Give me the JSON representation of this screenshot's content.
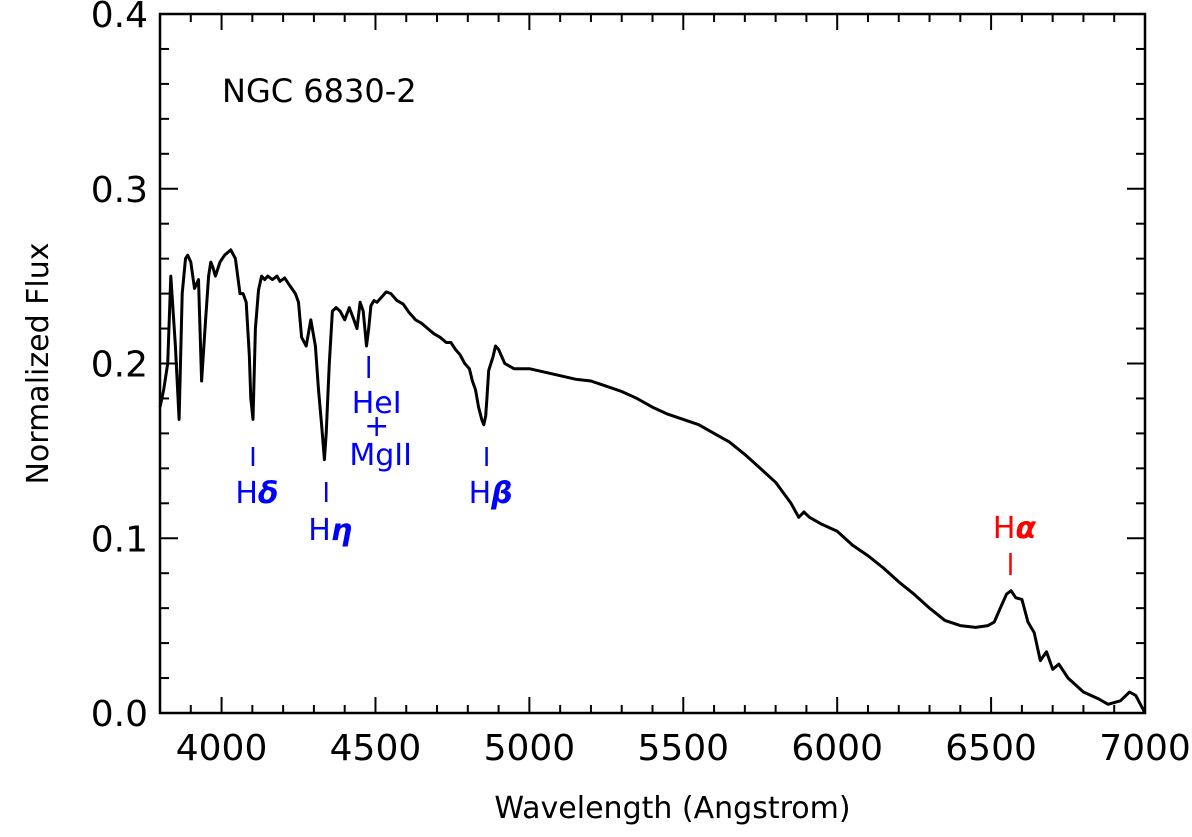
{
  "chart_data": {
    "type": "line",
    "title": "",
    "annotation": "NGC 6830-2",
    "xlabel": "Wavelength (Angstrom)",
    "ylabel": "Normalized Flux",
    "xlim": [
      3800,
      7000
    ],
    "ylim": [
      0.0,
      0.4
    ],
    "xticks": [
      4000,
      4500,
      5000,
      5500,
      6000,
      6500,
      7000
    ],
    "xtick_labels": [
      "4000",
      "4500",
      "5000",
      "5500",
      "6000",
      "6500",
      "7000"
    ],
    "yticks": [
      0.0,
      0.1,
      0.2,
      0.3,
      0.4
    ],
    "ytick_labels": [
      "0.0",
      "0.1",
      "0.2",
      "0.3",
      "0.4"
    ],
    "grid": false,
    "series": [
      {
        "color": "#000000",
        "x": [
          3800,
          3812,
          3825,
          3835,
          3850,
          3862,
          3872,
          3883,
          3890,
          3900,
          3912,
          3925,
          3935,
          3948,
          3958,
          3965,
          3972,
          3980,
          3995,
          4010,
          4030,
          4045,
          4060,
          4070,
          4080,
          4090,
          4095,
          4102,
          4110,
          4120,
          4130,
          4140,
          4150,
          4165,
          4180,
          4190,
          4205,
          4220,
          4240,
          4250,
          4260,
          4275,
          4290,
          4305,
          4315,
          4325,
          4334,
          4340,
          4350,
          4360,
          4372,
          4385,
          4400,
          4415,
          4430,
          4440,
          4450,
          4460,
          4471,
          4478,
          4485,
          4495,
          4505,
          4520,
          4535,
          4550,
          4570,
          4590,
          4610,
          4630,
          4650,
          4670,
          4690,
          4710,
          4730,
          4745,
          4760,
          4775,
          4790,
          4805,
          4815,
          4825,
          4835,
          4845,
          4852,
          4858,
          4862,
          4868,
          4875,
          4882,
          4890,
          4900,
          4920,
          4950,
          5000,
          5050,
          5100,
          5150,
          5200,
          5250,
          5300,
          5350,
          5400,
          5450,
          5500,
          5550,
          5600,
          5650,
          5700,
          5750,
          5800,
          5850,
          5875,
          5892,
          5910,
          5950,
          6000,
          6050,
          6100,
          6150,
          6200,
          6250,
          6300,
          6350,
          6400,
          6450,
          6490,
          6510,
          6530,
          6550,
          6565,
          6580,
          6600,
          6620,
          6640,
          6660,
          6680,
          6700,
          6720,
          6750,
          6800,
          6850,
          6880,
          6920,
          6950,
          6970,
          6985,
          7000
        ],
        "values": [
          0.175,
          0.185,
          0.2,
          0.25,
          0.21,
          0.168,
          0.24,
          0.26,
          0.262,
          0.258,
          0.243,
          0.248,
          0.19,
          0.225,
          0.25,
          0.258,
          0.255,
          0.25,
          0.258,
          0.262,
          0.265,
          0.26,
          0.24,
          0.24,
          0.235,
          0.205,
          0.18,
          0.168,
          0.22,
          0.242,
          0.25,
          0.248,
          0.25,
          0.248,
          0.25,
          0.247,
          0.249,
          0.245,
          0.24,
          0.235,
          0.215,
          0.21,
          0.225,
          0.21,
          0.185,
          0.165,
          0.145,
          0.16,
          0.2,
          0.23,
          0.232,
          0.23,
          0.225,
          0.232,
          0.225,
          0.22,
          0.235,
          0.23,
          0.21,
          0.22,
          0.233,
          0.236,
          0.235,
          0.238,
          0.241,
          0.24,
          0.236,
          0.234,
          0.229,
          0.225,
          0.223,
          0.22,
          0.217,
          0.215,
          0.212,
          0.212,
          0.208,
          0.205,
          0.2,
          0.197,
          0.19,
          0.185,
          0.175,
          0.168,
          0.165,
          0.17,
          0.18,
          0.196,
          0.2,
          0.204,
          0.21,
          0.208,
          0.2,
          0.197,
          0.197,
          0.195,
          0.193,
          0.191,
          0.19,
          0.187,
          0.184,
          0.18,
          0.175,
          0.171,
          0.168,
          0.165,
          0.16,
          0.155,
          0.148,
          0.14,
          0.132,
          0.12,
          0.112,
          0.115,
          0.112,
          0.108,
          0.104,
          0.096,
          0.09,
          0.083,
          0.075,
          0.068,
          0.06,
          0.053,
          0.05,
          0.049,
          0.05,
          0.052,
          0.06,
          0.068,
          0.07,
          0.066,
          0.065,
          0.052,
          0.046,
          0.03,
          0.035,
          0.025,
          0.028,
          0.02,
          0.012,
          0.008,
          0.005,
          0.007,
          0.012,
          0.01,
          0.005,
          0.0
        ]
      }
    ],
    "line_markers": [
      {
        "label": "Hδ",
        "base": "H",
        "greek": "δ",
        "x": 4102,
        "color": "#0000ff"
      },
      {
        "label": "Hη",
        "base": "H",
        "greek": "η",
        "x": 4340,
        "color": "#0000ff"
      },
      {
        "label": "HeI+MgII",
        "top": "HeI",
        "join": "+",
        "bottom": "MgII",
        "x": 4478,
        "color": "#0000ff"
      },
      {
        "label": "Hβ",
        "base": "H",
        "greek": "β",
        "x": 4861,
        "color": "#0000ff"
      },
      {
        "label": "Hα",
        "base": "H",
        "greek": "α",
        "x": 6563,
        "color": "#ff0000"
      }
    ]
  }
}
